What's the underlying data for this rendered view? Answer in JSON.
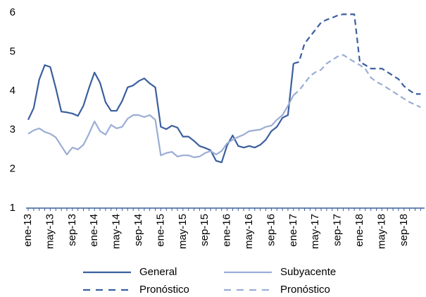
{
  "chart_data": {
    "type": "line",
    "categories": [
      "ene-13",
      null,
      null,
      null,
      "may-13",
      null,
      null,
      null,
      "sep-13",
      null,
      null,
      null,
      "ene-14",
      null,
      null,
      null,
      "may-14",
      null,
      null,
      null,
      "sep-14",
      null,
      null,
      null,
      "ene-15",
      null,
      null,
      null,
      "may-15",
      null,
      null,
      null,
      "sep-15",
      null,
      null,
      null,
      "ene-16",
      null,
      null,
      null,
      "may-16",
      null,
      null,
      null,
      "sep-16",
      null,
      null,
      null,
      "ene-17",
      null,
      null,
      null,
      "may-17",
      null,
      null,
      null,
      "sep-17",
      null,
      null,
      null,
      "ene-18",
      null,
      null,
      null,
      "may-18",
      null,
      null,
      null,
      "sep-18",
      null,
      null,
      null
    ],
    "series": [
      {
        "name": "General",
        "color": "#3a5f9e",
        "dashed": false,
        "values": [
          3.26,
          3.56,
          4.29,
          4.66,
          4.61,
          4.07,
          3.47,
          3.45,
          3.42,
          3.36,
          3.62,
          4.07,
          4.47,
          4.21,
          3.71,
          3.49,
          3.49,
          3.74,
          4.09,
          4.14,
          4.25,
          4.32,
          4.19,
          4.09,
          3.08,
          3.02,
          3.11,
          3.06,
          2.83,
          2.83,
          2.72,
          2.59,
          2.54,
          2.48,
          2.21,
          2.17,
          2.61,
          2.86,
          2.59,
          2.55,
          2.59,
          2.55,
          2.62,
          2.75,
          2.97,
          3.08,
          3.31,
          3.38,
          4.7,
          null,
          null,
          null,
          null,
          null,
          null,
          null,
          null,
          null,
          null,
          null,
          null,
          null,
          null,
          null,
          null,
          null,
          null,
          null,
          null,
          null,
          null,
          null
        ]
      },
      {
        "name": "Subyacente",
        "color": "#9badd6",
        "dashed": false,
        "values": [
          2.9,
          2.99,
          3.04,
          2.95,
          2.9,
          2.81,
          2.59,
          2.37,
          2.55,
          2.5,
          2.62,
          2.9,
          3.22,
          2.97,
          2.88,
          3.13,
          3.04,
          3.08,
          3.29,
          3.38,
          3.38,
          3.33,
          3.38,
          3.26,
          2.35,
          2.41,
          2.44,
          2.32,
          2.35,
          2.35,
          2.3,
          2.32,
          2.41,
          2.46,
          2.37,
          2.46,
          2.66,
          2.75,
          2.82,
          2.88,
          2.97,
          2.99,
          3.01,
          3.08,
          3.11,
          3.26,
          3.38,
          3.62,
          3.89,
          null,
          null,
          null,
          null,
          null,
          null,
          null,
          null,
          null,
          null,
          null,
          null,
          null,
          null,
          null,
          null,
          null,
          null,
          null,
          null,
          null,
          null,
          null
        ]
      },
      {
        "name": "Pronóstico",
        "color": "#3a5f9e",
        "dashed": true,
        "values": [
          null,
          null,
          null,
          null,
          null,
          null,
          null,
          null,
          null,
          null,
          null,
          null,
          null,
          null,
          null,
          null,
          null,
          null,
          null,
          null,
          null,
          null,
          null,
          null,
          null,
          null,
          null,
          null,
          null,
          null,
          null,
          null,
          null,
          null,
          null,
          null,
          null,
          null,
          null,
          null,
          null,
          null,
          null,
          null,
          null,
          null,
          null,
          null,
          4.7,
          4.74,
          5.21,
          5.39,
          5.57,
          5.75,
          5.82,
          5.87,
          5.93,
          5.96,
          5.96,
          5.96,
          4.74,
          4.66,
          4.57,
          4.57,
          4.57,
          4.48,
          4.39,
          4.3,
          4.12,
          4.01,
          3.92,
          3.92
        ]
      },
      {
        "name": "Pronóstico",
        "color": "#9badd6",
        "dashed": true,
        "values": [
          null,
          null,
          null,
          null,
          null,
          null,
          null,
          null,
          null,
          null,
          null,
          null,
          null,
          null,
          null,
          null,
          null,
          null,
          null,
          null,
          null,
          null,
          null,
          null,
          null,
          null,
          null,
          null,
          null,
          null,
          null,
          null,
          null,
          null,
          null,
          null,
          null,
          null,
          null,
          null,
          null,
          null,
          null,
          null,
          null,
          null,
          null,
          null,
          3.89,
          4.01,
          4.19,
          4.38,
          4.48,
          4.54,
          4.7,
          4.79,
          4.88,
          4.92,
          4.83,
          4.74,
          4.66,
          4.56,
          4.34,
          4.23,
          4.16,
          4.07,
          3.98,
          3.89,
          3.8,
          3.71,
          3.65,
          3.58
        ]
      }
    ],
    "ylim": [
      1,
      6
    ],
    "yticks": [
      1,
      2,
      3,
      4,
      5,
      6
    ],
    "grid": false,
    "legend": "bottom"
  }
}
